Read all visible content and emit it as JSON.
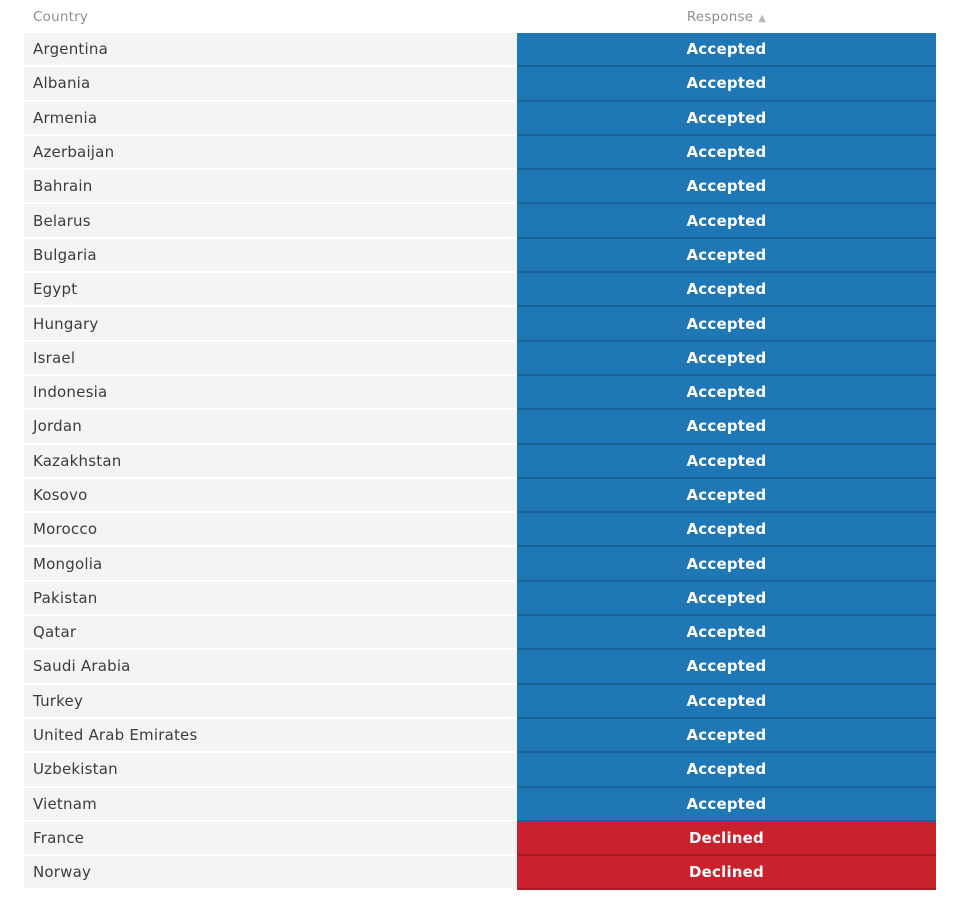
{
  "table": {
    "columns": [
      {
        "label": "Country",
        "align": "left"
      },
      {
        "label": "Response",
        "align": "center",
        "sorted": "ascending",
        "sort_indicator": "▲"
      }
    ],
    "rows": [
      {
        "country": "Argentina",
        "response": "Accepted"
      },
      {
        "country": "Albania",
        "response": "Accepted"
      },
      {
        "country": "Armenia",
        "response": "Accepted"
      },
      {
        "country": "Azerbaijan",
        "response": "Accepted"
      },
      {
        "country": "Bahrain",
        "response": "Accepted"
      },
      {
        "country": "Belarus",
        "response": "Accepted"
      },
      {
        "country": "Bulgaria",
        "response": "Accepted"
      },
      {
        "country": "Egypt",
        "response": "Accepted"
      },
      {
        "country": "Hungary",
        "response": "Accepted"
      },
      {
        "country": "Israel",
        "response": "Accepted"
      },
      {
        "country": "Indonesia",
        "response": "Accepted"
      },
      {
        "country": "Jordan",
        "response": "Accepted"
      },
      {
        "country": "Kazakhstan",
        "response": "Accepted"
      },
      {
        "country": "Kosovo",
        "response": "Accepted"
      },
      {
        "country": "Morocco",
        "response": "Accepted"
      },
      {
        "country": "Mongolia",
        "response": "Accepted"
      },
      {
        "country": "Pakistan",
        "response": "Accepted"
      },
      {
        "country": "Qatar",
        "response": "Accepted"
      },
      {
        "country": "Saudi Arabia",
        "response": "Accepted"
      },
      {
        "country": "Turkey",
        "response": "Accepted"
      },
      {
        "country": "United Arab Emirates",
        "response": "Accepted"
      },
      {
        "country": "Uzbekistan",
        "response": "Accepted"
      },
      {
        "country": "Vietnam",
        "response": "Accepted"
      },
      {
        "country": "France",
        "response": "Declined"
      },
      {
        "country": "Norway",
        "response": "Declined"
      }
    ],
    "statuses": {
      "Accepted": "#2077b5",
      "Declined": "#c8222d"
    },
    "colors": {
      "country_cell_bg": "#f4f4f4",
      "country_text": "#3c3c3c",
      "header_text": "#8e8e8e",
      "sort_icon": "#b8b8b8",
      "status_text": "#ffffff"
    }
  }
}
